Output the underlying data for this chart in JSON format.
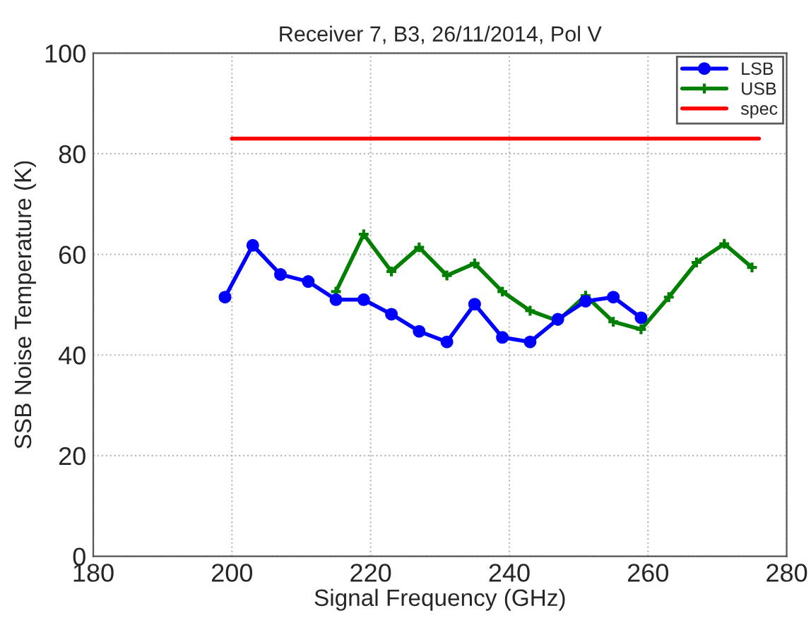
{
  "chart_data": {
    "type": "line",
    "title": "Receiver 7, B3, 26/11/2014, Pol V",
    "xlabel": "Signal Frequency (GHz)",
    "ylabel": "SSB Noise Temperature (K)",
    "series": [
      {
        "name": "LSB",
        "color": "#0000ff",
        "marker": "circle",
        "x": [
          199,
          203,
          207,
          211,
          215,
          219,
          223,
          227,
          231,
          235,
          239,
          243,
          247,
          251,
          255,
          259
        ],
        "values": [
          51.5,
          61.8,
          56,
          54.6,
          51,
          51,
          48.1,
          44.7,
          42.6,
          50.1,
          43.5,
          42.6,
          47.1,
          50.7,
          51.5,
          47.4
        ]
      },
      {
        "name": "USB",
        "color": "#007f00",
        "marker": "cross",
        "x": [
          215,
          219,
          223,
          227,
          231,
          235,
          239,
          243,
          247,
          251,
          255,
          259,
          263,
          267,
          271,
          275
        ],
        "values": [
          52.6,
          64,
          56.6,
          61.4,
          55.8,
          58.2,
          52.6,
          48.8,
          46.8,
          51.8,
          46.6,
          45.1,
          51.5,
          58.4,
          62.1,
          57.4
        ]
      },
      {
        "name": "spec",
        "color": "#ff0000",
        "marker": "none",
        "x": [
          200,
          276
        ],
        "values": [
          83,
          83
        ]
      }
    ],
    "xlim": [
      180,
      280
    ],
    "xticks": [
      180,
      200,
      220,
      240,
      260,
      280
    ],
    "ylim": [
      0,
      100
    ],
    "yticks": [
      0,
      20,
      40,
      60,
      80,
      100
    ],
    "grid": true,
    "legend": "top right"
  }
}
